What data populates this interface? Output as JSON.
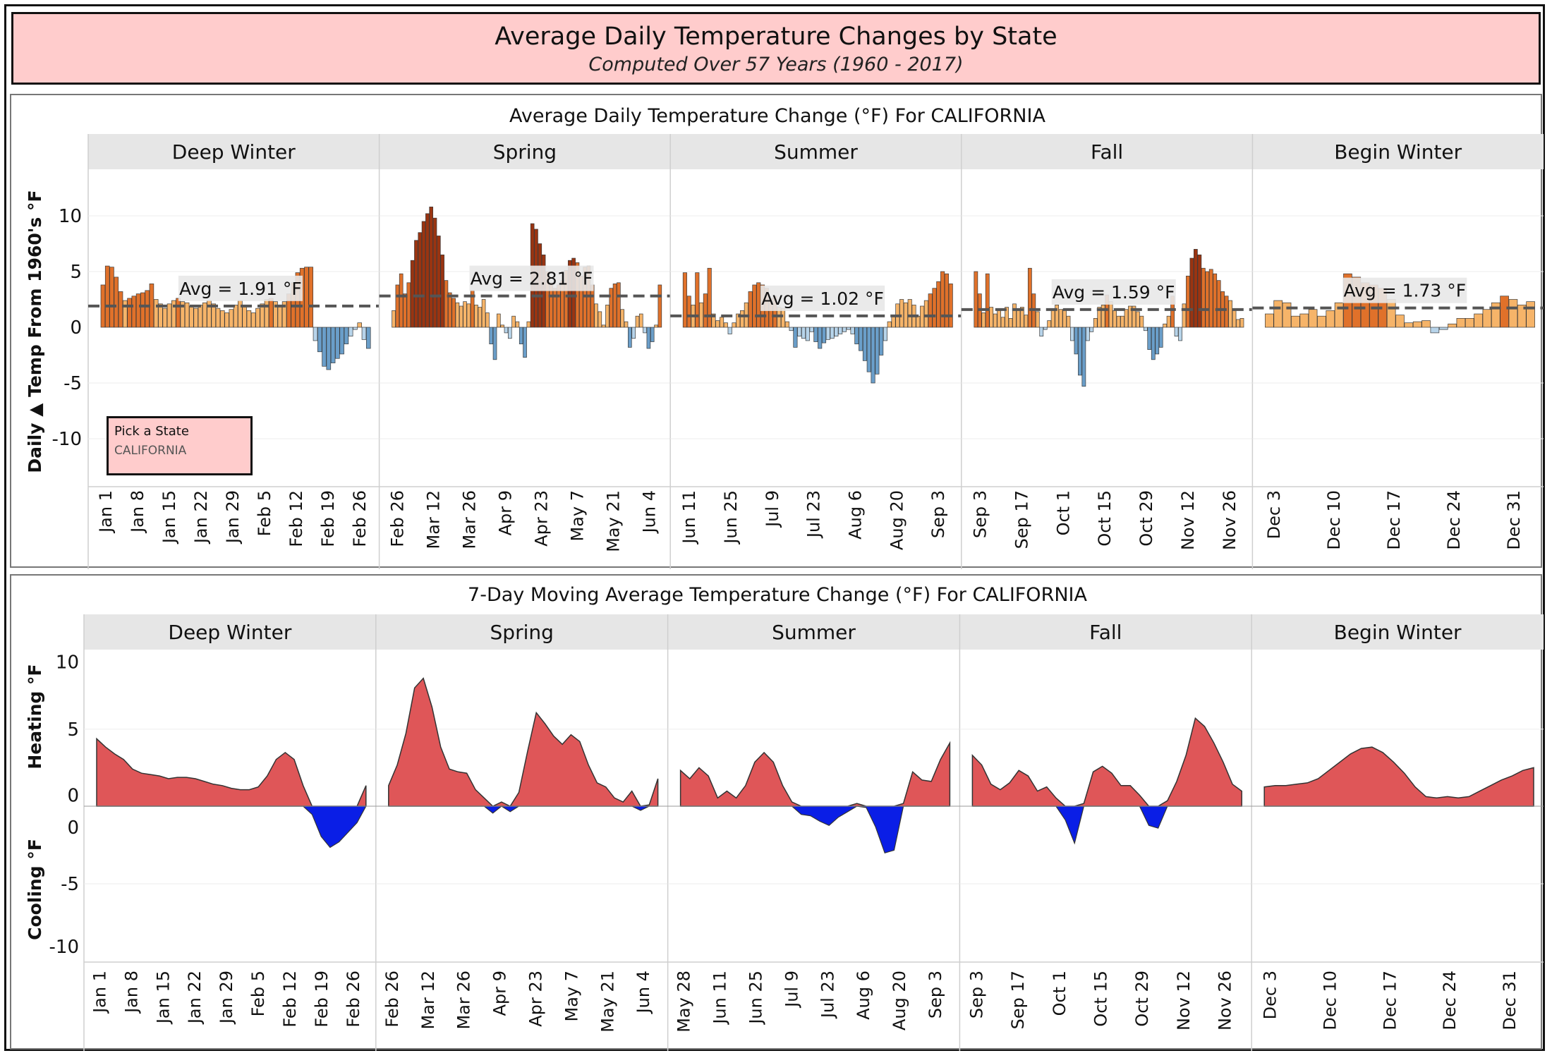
{
  "header": {
    "title": "Average Daily Temperature Changes by State",
    "subtitle": "Computed Over 57 Years (1960 - 2017)"
  },
  "state_picker": {
    "label": "Pick a State",
    "value": "CALIFORNIA"
  },
  "colors": {
    "warm_dark": "#9a3411",
    "warm_mid": "#e0712a",
    "warm_light": "#f6b469",
    "cool_light": "#b7d4ea",
    "cool_mid": "#6a9ec9",
    "heat_area": "#df5658",
    "cool_area": "#0a1ee6",
    "band_bg": "#e6e6e6",
    "title_bg": "#ffcccc"
  },
  "chart_data": [
    {
      "type": "bar",
      "title": "Average Daily Temperature Change (°F) For CALIFORNIA",
      "ylabel": "Daily ▲ Temp From 1960's °F",
      "ylim": [
        -10,
        11
      ],
      "yticks": [
        10,
        5,
        0,
        -5,
        -10
      ],
      "facets": [
        {
          "name": "Deep Winter",
          "ticks": [
            "Jan 1",
            "Jan 8",
            "Jan 15",
            "Jan 22",
            "Jan 29",
            "Feb 5",
            "Feb 12",
            "Feb 19",
            "Feb 26"
          ],
          "average": 1.91,
          "avg_label": "Avg = 1.91 °F",
          "values": [
            3.8,
            5.5,
            5.4,
            4.5,
            3.2,
            2.4,
            2.6,
            2.8,
            3.0,
            3.1,
            3.3,
            3.9,
            2.5,
            2.1,
            1.7,
            2.1,
            2.4,
            2.6,
            2.3,
            2.2,
            1.9,
            1.7,
            2.0,
            2.2,
            2.4,
            2.1,
            1.7,
            1.5,
            1.3,
            1.6,
            2.0,
            2.4,
            1.9,
            1.5,
            1.3,
            1.7,
            2.1,
            2.5,
            2.6,
            2.3,
            2.0,
            2.3,
            3.0,
            4.0,
            4.9,
            5.3,
            5.4,
            5.4,
            -1.2,
            -2.2,
            -3.5,
            -3.8,
            -3.2,
            -2.8,
            -2.4,
            -1.5,
            -0.8,
            -0.2,
            0.4,
            -1.1,
            -1.9
          ]
        },
        {
          "name": "Spring",
          "ticks": [
            "Feb 26",
            "Mar 12",
            "Mar 26",
            "Apr 9",
            "Apr 23",
            "May 7",
            "May 21",
            "Jun 4"
          ],
          "average": 2.81,
          "avg_label": "Avg = 2.81 °F",
          "values": [
            1.5,
            3.8,
            4.8,
            3.0,
            4.0,
            6.0,
            7.8,
            8.5,
            9.5,
            10.2,
            10.8,
            9.8,
            8.2,
            6.5,
            4.2,
            3.1,
            2.6,
            2.2,
            1.9,
            2.3,
            2.1,
            3.3,
            2.0,
            1.8,
            2.5,
            1.3,
            -1.5,
            -2.9,
            1.2,
            0.2,
            -0.5,
            -1.0,
            1.0,
            0.5,
            -1.5,
            -2.7,
            0.5,
            9.3,
            8.8,
            7.5,
            6.5,
            5.0,
            4.0,
            3.5,
            3.8,
            4.2,
            5.1,
            6.0,
            6.2,
            5.8,
            4.6,
            5.4,
            5.5,
            3.8,
            2.1,
            1.4,
            0.2,
            2.0,
            3.5,
            3.9,
            4.0,
            1.6,
            0.5,
            -1.8,
            -1.0,
            1.0,
            1.2,
            -0.5,
            -1.9,
            -1.3,
            0.2,
            3.8
          ]
        },
        {
          "name": "Summer",
          "ticks": [
            "Jun 11",
            "Jun 25",
            "Jul 9",
            "Jul 23",
            "Aug 6",
            "Aug 20",
            "Sep 3"
          ],
          "average": 1.02,
          "avg_label": "Avg = 1.02 °F",
          "values": [
            4.9,
            2.8,
            2.0,
            4.9,
            2.2,
            3.0,
            5.3,
            1.2,
            0.6,
            0.9,
            0.4,
            -0.6,
            0.4,
            1.2,
            1.5,
            2.2,
            3.2,
            3.8,
            4.0,
            3.8,
            3.5,
            2.6,
            2.8,
            1.8,
            1.7,
            0.5,
            -0.3,
            -1.8,
            -0.8,
            -1.0,
            -1.2,
            -0.4,
            -1.3,
            -1.9,
            -1.4,
            -1.1,
            -1.0,
            -0.8,
            -0.6,
            -0.4,
            -0.2,
            -0.6,
            -1.5,
            -2.1,
            -3.0,
            -4.0,
            -5.0,
            -4.2,
            -2.5,
            -1.2,
            0.5,
            1.0,
            2.1,
            2.5,
            2.2,
            2.5,
            2.0,
            1.0,
            1.9,
            2.4,
            3.0,
            3.5,
            4.1,
            5.0,
            4.8,
            3.9
          ]
        },
        {
          "name": "Fall",
          "ticks": [
            "Sep 3",
            "Sep 17",
            "Oct 1",
            "Oct 15",
            "Oct 29",
            "Nov 12",
            "Nov 26"
          ],
          "average": 1.59,
          "avg_label": "Avg = 1.59 °F",
          "values": [
            5.0,
            3.0,
            1.3,
            4.8,
            1.8,
            1.2,
            1.5,
            0.9,
            1.8,
            0.8,
            2.1,
            1.6,
            1.8,
            1.1,
            5.3,
            3.0,
            1.4,
            -0.8,
            -0.2,
            0.6,
            1.5,
            2.0,
            1.6,
            1.6,
            1.0,
            -1.2,
            -2.4,
            -4.3,
            -5.3,
            -1.2,
            -0.4,
            0.8,
            1.8,
            2.0,
            2.9,
            2.3,
            1.5,
            1.0,
            1.0,
            1.6,
            1.9,
            1.9,
            1.4,
            1.0,
            -0.3,
            -2.0,
            -2.9,
            -2.4,
            -1.8,
            0.3,
            1.0,
            2.8,
            -0.8,
            -1.2,
            2.1,
            4.6,
            6.2,
            7.0,
            6.5,
            5.3,
            5.0,
            5.2,
            4.8,
            4.2,
            3.2,
            2.8,
            2.4,
            1.5,
            0.7,
            0.8
          ]
        },
        {
          "name": "Begin Winter",
          "ticks": [
            "Dec 3",
            "Dec 10",
            "Dec 17",
            "Dec 24",
            "Dec 31"
          ],
          "average": 1.73,
          "avg_label": "Avg = 1.73 °F",
          "values": [
            1.2,
            2.4,
            2.2,
            1.0,
            1.2,
            1.6,
            1.0,
            1.5,
            2.2,
            4.8,
            4.5,
            4.0,
            3.8,
            3.5,
            2.5,
            1.1,
            0.4,
            0.5,
            0.6,
            -0.5,
            -0.2,
            0.3,
            0.8,
            0.8,
            1.2,
            1.6,
            2.2,
            2.8,
            2.5,
            2.0,
            2.3
          ]
        }
      ]
    },
    {
      "type": "area",
      "title": "7-Day Moving Average Temperature Change (°F) For CALIFORNIA",
      "ylabel_top": "Heating °F",
      "ylabel_bottom": "Cooling °F",
      "ylim": [
        -10,
        11
      ],
      "yticks_top": [
        10,
        5,
        0
      ],
      "yticks_bottom": [
        0,
        -5,
        -10
      ],
      "facets": [
        {
          "name": "Deep Winter",
          "ticks": [
            "Jan 1",
            "Jan 8",
            "Jan 15",
            "Jan 22",
            "Jan 29",
            "Feb 5",
            "Feb 12",
            "Feb 19",
            "Feb 26"
          ],
          "values": [
            4.9,
            4.3,
            3.8,
            3.4,
            2.7,
            2.4,
            2.3,
            2.2,
            2.0,
            2.1,
            2.1,
            2.0,
            1.8,
            1.6,
            1.5,
            1.3,
            1.2,
            1.2,
            1.4,
            2.2,
            3.4,
            3.9,
            3.4,
            1.5,
            -0.6,
            -2.2,
            -3.0,
            -2.6,
            -1.9,
            -1.2,
            1.5
          ]
        },
        {
          "name": "Spring",
          "ticks": [
            "Feb 26",
            "Mar 12",
            "Mar 26",
            "Apr 9",
            "Apr 23",
            "May 7",
            "May 21",
            "Jun 4"
          ],
          "values": [
            1.5,
            3.0,
            5.3,
            8.6,
            9.3,
            7.2,
            4.3,
            2.7,
            2.5,
            2.4,
            1.2,
            0.6,
            -0.5,
            0.3,
            -0.4,
            1.0,
            4.0,
            6.8,
            6.0,
            5.1,
            4.5,
            5.2,
            4.7,
            3.0,
            1.7,
            1.4,
            0.6,
            0.3,
            1.1,
            -0.3,
            0.1,
            2.0
          ]
        },
        {
          "name": "Summer",
          "ticks": [
            "May 28",
            "Jun 11",
            "Jun 25",
            "Jul 9",
            "Jul 23",
            "Aug 6",
            "Aug 20",
            "Sep 3"
          ],
          "values": [
            2.6,
            2.0,
            2.8,
            2.2,
            0.6,
            1.1,
            0.6,
            1.5,
            3.2,
            3.9,
            3.2,
            1.5,
            0.3,
            -0.6,
            -0.7,
            -1.1,
            -1.4,
            -0.8,
            -0.4,
            0.2,
            -0.1,
            -1.5,
            -3.4,
            -3.2,
            0.2,
            2.5,
            1.9,
            1.8,
            3.4,
            4.6
          ]
        },
        {
          "name": "Fall",
          "ticks": [
            "Sep 3",
            "Sep 17",
            "Oct 1",
            "Oct 15",
            "Oct 29",
            "Nov 12",
            "Nov 26"
          ],
          "values": [
            3.7,
            3.0,
            1.6,
            1.2,
            1.7,
            2.6,
            2.2,
            1.1,
            1.4,
            0.6,
            -1.0,
            -2.7,
            0.2,
            2.5,
            2.9,
            2.4,
            1.5,
            1.5,
            0.8,
            -1.4,
            -1.6,
            0.4,
            1.8,
            3.7,
            6.4,
            5.8,
            4.6,
            3.2,
            1.6,
            1.1
          ]
        },
        {
          "name": "Begin Winter",
          "ticks": [
            "Dec 3",
            "Dec 10",
            "Dec 17",
            "Dec 24",
            "Dec 31"
          ],
          "values": [
            1.4,
            1.5,
            1.5,
            1.6,
            1.7,
            2.0,
            2.6,
            3.2,
            3.8,
            4.2,
            4.3,
            3.9,
            3.2,
            2.4,
            1.4,
            0.7,
            0.6,
            0.7,
            0.6,
            0.7,
            1.1,
            1.5,
            1.9,
            2.2,
            2.6,
            2.8
          ]
        }
      ]
    }
  ]
}
